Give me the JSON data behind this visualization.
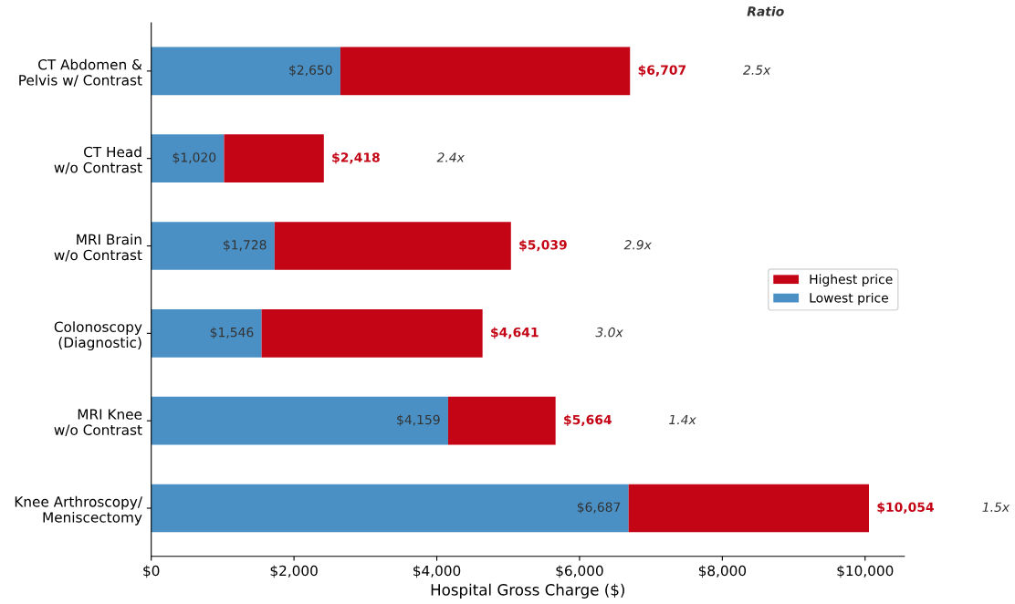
{
  "chart_data": {
    "type": "bar",
    "orientation": "horizontal",
    "stacked": true,
    "xlabel": "Hospital Gross Charge ($)",
    "categories": [
      "CT Abdomen &\nPelvis w/ Contrast",
      "CT Head\nw/o Contrast",
      "MRI Brain\nw/o Contrast",
      "Colonoscopy\n(Diagnostic)",
      "MRI Knee\nw/o Contrast",
      "Knee Arthroscopy/\nMeniscectomy"
    ],
    "series": [
      {
        "name": "Lowest price",
        "color": "#4a90c4",
        "values": [
          2650,
          1020,
          1728,
          1546,
          4159,
          6687
        ],
        "value_labels": [
          "$2,650",
          "$1,020",
          "$1,728",
          "$1,546",
          "$4,159",
          "$6,687"
        ]
      },
      {
        "name": "Highest price",
        "color": "#c40515",
        "values": [
          4057,
          1398,
          3311,
          3095,
          1505,
          3367
        ]
      }
    ],
    "totals": [
      "$6,707",
      "$2,418",
      "$5,039",
      "$4,641",
      "$5,664",
      "$10,054"
    ],
    "annotations": [
      "Ratio",
      "2.5x",
      "2.4x",
      "2.9x",
      "3.0x",
      "1.4x",
      "1.5x"
    ],
    "xlim": [
      0,
      10550
    ],
    "xticks": [
      {
        "value": 0,
        "label": "$0"
      },
      {
        "value": 2000,
        "label": "$2,000"
      },
      {
        "value": 4000,
        "label": "$4,000"
      },
      {
        "value": 6000,
        "label": "$6,000"
      },
      {
        "value": 8000,
        "label": "$8,000"
      },
      {
        "value": 10000,
        "label": "$10,000"
      }
    ],
    "grid": false,
    "legend": "right"
  }
}
